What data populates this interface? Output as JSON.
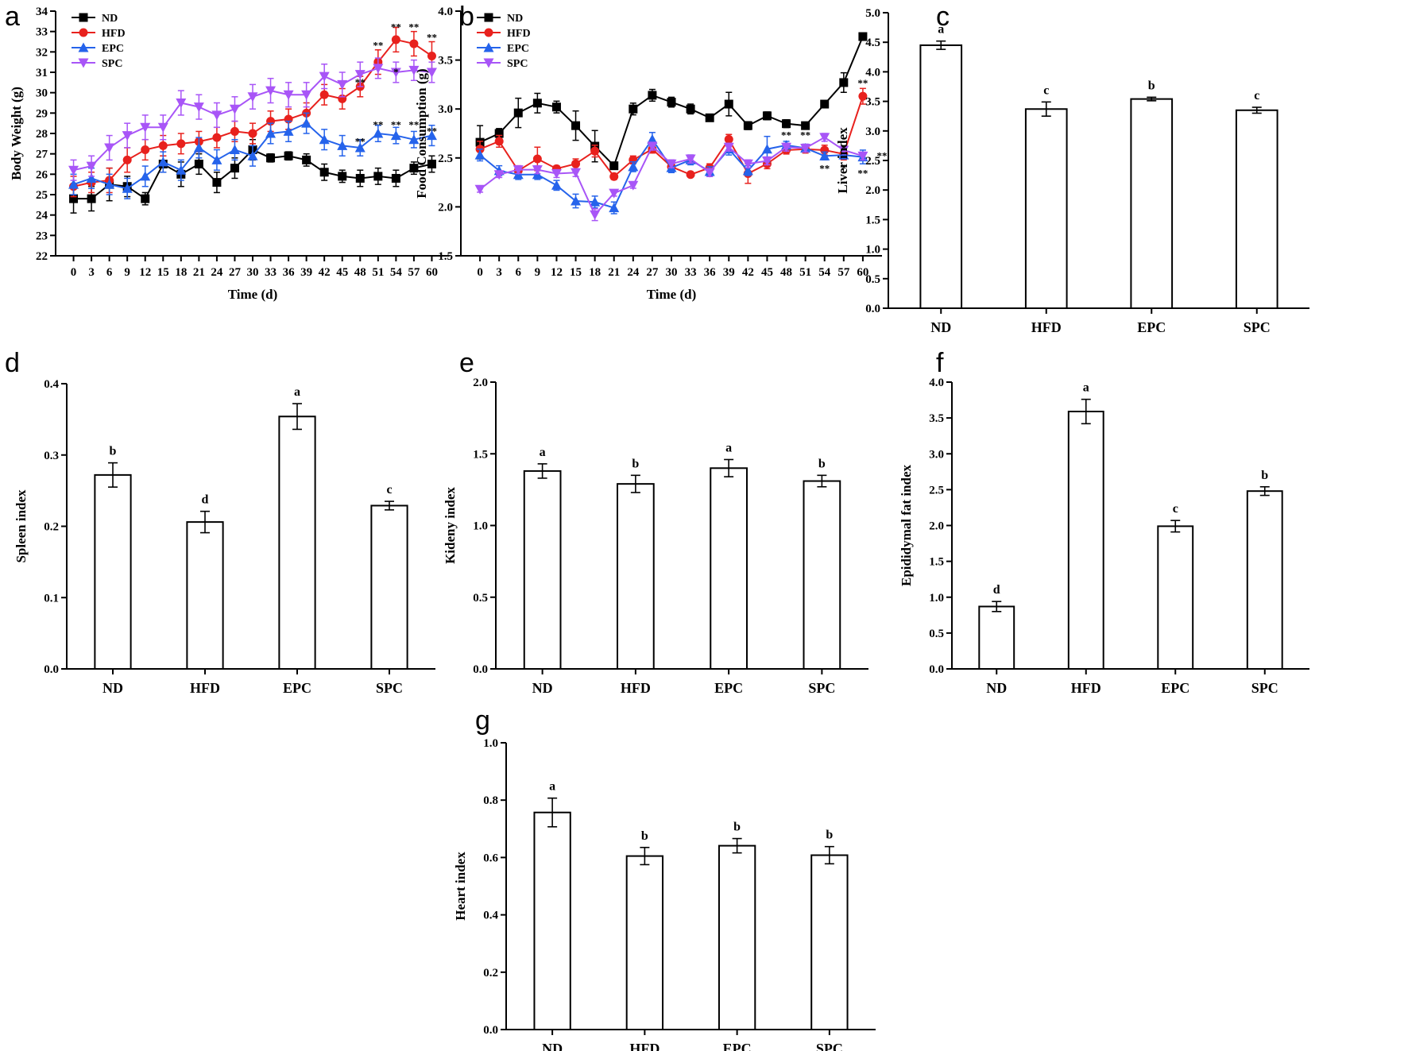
{
  "figure": {
    "panel_letters": [
      "a",
      "b",
      "c",
      "d",
      "e",
      "f",
      "g"
    ]
  },
  "colors": {
    "ND": "#000000",
    "HFD": "#e8211d",
    "EPC": "#2563eb",
    "SPC": "#a855f7",
    "bar_fill": "#ffffff",
    "axis": "#000000"
  },
  "chart_data": [
    {
      "panel": "a",
      "type": "line",
      "xlabel": "Time (d)",
      "ylabel": "Body Weight (g)",
      "ylim": [
        22,
        34
      ],
      "yticks": [
        "22",
        "23",
        "24",
        "25",
        "26",
        "27",
        "28",
        "29",
        "30",
        "31",
        "32",
        "33",
        "34"
      ],
      "x": [
        0,
        3,
        6,
        9,
        12,
        15,
        18,
        21,
        24,
        27,
        30,
        33,
        36,
        39,
        42,
        45,
        48,
        51,
        54,
        57,
        60
      ],
      "series": [
        {
          "name": "ND",
          "marker": "square",
          "values": [
            24.8,
            24.8,
            25.5,
            25.4,
            24.8,
            26.5,
            26.0,
            26.5,
            25.6,
            26.3,
            27.2,
            26.8,
            26.9,
            26.7,
            26.1,
            25.9,
            25.8,
            25.9,
            25.8,
            26.3,
            26.5
          ],
          "err": [
            0.7,
            0.6,
            0.8,
            0.5,
            0.3,
            0.4,
            0.6,
            0.5,
            0.5,
            0.5,
            0.5,
            0.2,
            0.2,
            0.3,
            0.4,
            0.3,
            0.4,
            0.4,
            0.4,
            0.3,
            0.4
          ]
        },
        {
          "name": "HFD",
          "marker": "circle",
          "values": [
            25.4,
            25.6,
            25.7,
            26.7,
            27.2,
            27.4,
            27.5,
            27.6,
            27.8,
            28.1,
            28.0,
            28.6,
            28.7,
            29.0,
            29.9,
            29.7,
            30.3,
            31.5,
            32.6,
            32.4,
            31.8
          ],
          "err": [
            0.5,
            0.5,
            0.6,
            0.6,
            0.5,
            0.5,
            0.5,
            0.5,
            0.5,
            0.5,
            0.5,
            0.5,
            0.5,
            0.5,
            0.5,
            0.5,
            0.5,
            0.6,
            0.6,
            0.6,
            0.7
          ]
        },
        {
          "name": "EPC",
          "marker": "triangle-up",
          "values": [
            25.5,
            25.8,
            25.5,
            25.3,
            25.9,
            26.6,
            26.2,
            27.3,
            26.7,
            27.2,
            26.9,
            28.0,
            28.1,
            28.5,
            27.7,
            27.4,
            27.3,
            28.0,
            27.9,
            27.7,
            27.9
          ],
          "err": [
            0.5,
            0.5,
            0.5,
            0.5,
            0.5,
            0.5,
            0.5,
            0.5,
            0.5,
            0.5,
            0.5,
            0.5,
            0.5,
            0.5,
            0.5,
            0.5,
            0.4,
            0.4,
            0.4,
            0.4,
            0.5
          ]
        },
        {
          "name": "SPC",
          "marker": "triangle-down",
          "values": [
            26.2,
            26.4,
            27.3,
            27.9,
            28.3,
            28.3,
            29.5,
            29.3,
            28.9,
            29.2,
            29.8,
            30.1,
            29.9,
            29.9,
            30.8,
            30.4,
            30.9,
            31.2,
            31.0,
            31.1,
            31.0
          ],
          "err": [
            0.5,
            0.5,
            0.6,
            0.6,
            0.6,
            0.6,
            0.6,
            0.6,
            0.6,
            0.6,
            0.6,
            0.6,
            0.6,
            0.6,
            0.6,
            0.6,
            0.6,
            0.5,
            0.5,
            0.5,
            0.5
          ]
        }
      ],
      "annotations": [
        {
          "text": "**",
          "x": 48,
          "y": 30.5
        },
        {
          "text": "**",
          "x": 51,
          "y": 32.3
        },
        {
          "text": "**",
          "x": 54,
          "y": 33.2
        },
        {
          "text": "**",
          "x": 57,
          "y": 33.2
        },
        {
          "text": "**",
          "x": 60,
          "y": 32.7
        },
        {
          "text": "*",
          "x": 54,
          "y": 31.0
        },
        {
          "text": "**",
          "x": 48,
          "y": 27.6
        },
        {
          "text": "**",
          "x": 51,
          "y": 28.4
        },
        {
          "text": "**",
          "x": 54,
          "y": 28.4
        },
        {
          "text": "**",
          "x": 57,
          "y": 28.4
        },
        {
          "text": "**",
          "x": 60,
          "y": 28.1
        }
      ],
      "legend": [
        "ND",
        "HFD",
        "EPC",
        "SPC"
      ],
      "legend_position": "top-left"
    },
    {
      "panel": "b",
      "type": "line",
      "xlabel": "Time (d)",
      "ylabel": "Food Consumption (g)",
      "ylim": [
        1.5,
        4.0
      ],
      "yticks": [
        "1.5",
        "2.0",
        "2.5",
        "3.0",
        "3.5",
        "4.0"
      ],
      "x": [
        0,
        3,
        6,
        9,
        12,
        15,
        18,
        21,
        24,
        27,
        30,
        33,
        36,
        39,
        42,
        45,
        48,
        51,
        54,
        57,
        60
      ],
      "series": [
        {
          "name": "ND",
          "marker": "square",
          "values": [
            2.66,
            2.75,
            2.96,
            3.06,
            3.02,
            2.83,
            2.62,
            2.42,
            3.0,
            3.14,
            3.07,
            3.0,
            2.91,
            3.05,
            2.83,
            2.93,
            2.85,
            2.83,
            3.05,
            3.27,
            3.74
          ],
          "err": [
            0.17,
            0.05,
            0.15,
            0.1,
            0.06,
            0.15,
            0.16,
            0.02,
            0.06,
            0.06,
            0.05,
            0.05,
            0.03,
            0.12,
            0.04,
            0.04,
            0.04,
            0.03,
            0.03,
            0.1,
            0.03
          ]
        },
        {
          "name": "HFD",
          "marker": "circle",
          "values": [
            2.59,
            2.67,
            2.37,
            2.49,
            2.39,
            2.44,
            2.57,
            2.31,
            2.48,
            2.59,
            2.41,
            2.33,
            2.4,
            2.69,
            2.34,
            2.44,
            2.58,
            2.59,
            2.58,
            2.54,
            3.13
          ],
          "err": [
            0.08,
            0.06,
            0.05,
            0.12,
            0.03,
            0.05,
            0.06,
            0.03,
            0.04,
            0.04,
            0.04,
            0.02,
            0.04,
            0.05,
            0.1,
            0.05,
            0.04,
            0.04,
            0.05,
            0.06,
            0.08
          ]
        },
        {
          "name": "EPC",
          "marker": "triangle-up",
          "values": [
            2.53,
            2.37,
            2.33,
            2.33,
            2.22,
            2.06,
            2.05,
            1.99,
            2.41,
            2.69,
            2.4,
            2.48,
            2.36,
            2.59,
            2.37,
            2.59,
            2.63,
            2.6,
            2.52,
            2.53,
            2.51
          ],
          "err": [
            0.06,
            0.05,
            0.05,
            0.05,
            0.05,
            0.07,
            0.06,
            0.06,
            0.05,
            0.07,
            0.05,
            0.05,
            0.05,
            0.06,
            0.05,
            0.13,
            0.04,
            0.04,
            0.04,
            0.04,
            0.07
          ]
        },
        {
          "name": "SPC",
          "marker": "triangle-down",
          "values": [
            2.18,
            2.33,
            2.38,
            2.38,
            2.34,
            2.35,
            1.92,
            2.14,
            2.22,
            2.62,
            2.44,
            2.49,
            2.35,
            2.61,
            2.44,
            2.47,
            2.61,
            2.6,
            2.71,
            2.58,
            2.52
          ],
          "err": [
            0.03,
            0.03,
            0.04,
            0.04,
            0.04,
            0.04,
            0.06,
            0.03,
            0.03,
            0.04,
            0.04,
            0.04,
            0.04,
            0.04,
            0.04,
            0.04,
            0.04,
            0.04,
            0.04,
            0.04,
            0.04
          ]
        }
      ],
      "annotations": [
        {
          "text": "**",
          "x": 60,
          "y": 3.26
        },
        {
          "text": "**",
          "x": 48,
          "y": 2.73
        },
        {
          "text": "**",
          "x": 51,
          "y": 2.73
        },
        {
          "text": "*",
          "x": 57,
          "y": 2.59
        },
        {
          "text": "**",
          "x": 54,
          "y": 2.39
        },
        {
          "text": "*",
          "x": 57,
          "y": 2.39
        },
        {
          "text": "**",
          "x": 60,
          "y": 2.34
        },
        {
          "text": "**",
          "x": 63,
          "y": 2.52
        }
      ],
      "legend": [
        "ND",
        "HFD",
        "EPC",
        "SPC"
      ],
      "legend_position": "top-left"
    },
    {
      "panel": "c",
      "type": "bar",
      "ylabel": "Liver index",
      "ylim": [
        0,
        5
      ],
      "yticks": [
        "0.0",
        "0.5",
        "1.0",
        "1.5",
        "2.0",
        "2.5",
        "3.0",
        "3.5",
        "4.0",
        "4.5",
        "5.0"
      ],
      "categories": [
        "ND",
        "HFD",
        "EPC",
        "SPC"
      ],
      "values": [
        4.45,
        3.37,
        3.54,
        3.35
      ],
      "err": [
        0.07,
        0.12,
        0.03,
        0.05
      ],
      "labels": [
        "a",
        "c",
        "b",
        "c"
      ]
    },
    {
      "panel": "d",
      "type": "bar",
      "ylabel": "Spleen index",
      "ylim": [
        0,
        0.4
      ],
      "yticks": [
        "0.0",
        "0.1",
        "0.2",
        "0.3",
        "0.4"
      ],
      "categories": [
        "ND",
        "HFD",
        "EPC",
        "SPC"
      ],
      "values": [
        0.272,
        0.206,
        0.354,
        0.229
      ],
      "err": [
        0.017,
        0.015,
        0.018,
        0.006
      ],
      "labels": [
        "b",
        "d",
        "a",
        "c"
      ]
    },
    {
      "panel": "e",
      "type": "bar",
      "ylabel": "Kideny index",
      "ylim": [
        0,
        2
      ],
      "yticks": [
        "0.0",
        "0.5",
        "1.0",
        "1.5",
        "2.0"
      ],
      "categories": [
        "ND",
        "HFD",
        "EPC",
        "SPC"
      ],
      "values": [
        1.38,
        1.29,
        1.4,
        1.31
      ],
      "err": [
        0.05,
        0.06,
        0.06,
        0.04
      ],
      "labels": [
        "a",
        "b",
        "a",
        "b"
      ]
    },
    {
      "panel": "f",
      "type": "bar",
      "ylabel": "Epididymal fat index",
      "ylim": [
        0,
        4
      ],
      "yticks": [
        "0.0",
        "0.5",
        "1.0",
        "1.5",
        "2.0",
        "2.5",
        "3.0",
        "3.5",
        "4.0"
      ],
      "categories": [
        "ND",
        "HFD",
        "EPC",
        "SPC"
      ],
      "values": [
        0.87,
        3.59,
        1.99,
        2.48
      ],
      "err": [
        0.07,
        0.17,
        0.08,
        0.06
      ],
      "labels": [
        "d",
        "a",
        "c",
        "b"
      ]
    },
    {
      "panel": "g",
      "type": "bar",
      "ylabel": "Heart index",
      "ylim": [
        0,
        1
      ],
      "yticks": [
        "0.0",
        "0.2",
        "0.4",
        "0.6",
        "0.8",
        "1.0"
      ],
      "categories": [
        "ND",
        "HFD",
        "EPC",
        "SPC"
      ],
      "values": [
        0.757,
        0.605,
        0.641,
        0.608
      ],
      "err": [
        0.05,
        0.03,
        0.025,
        0.03
      ],
      "labels": [
        "a",
        "b",
        "b",
        "b"
      ]
    }
  ]
}
